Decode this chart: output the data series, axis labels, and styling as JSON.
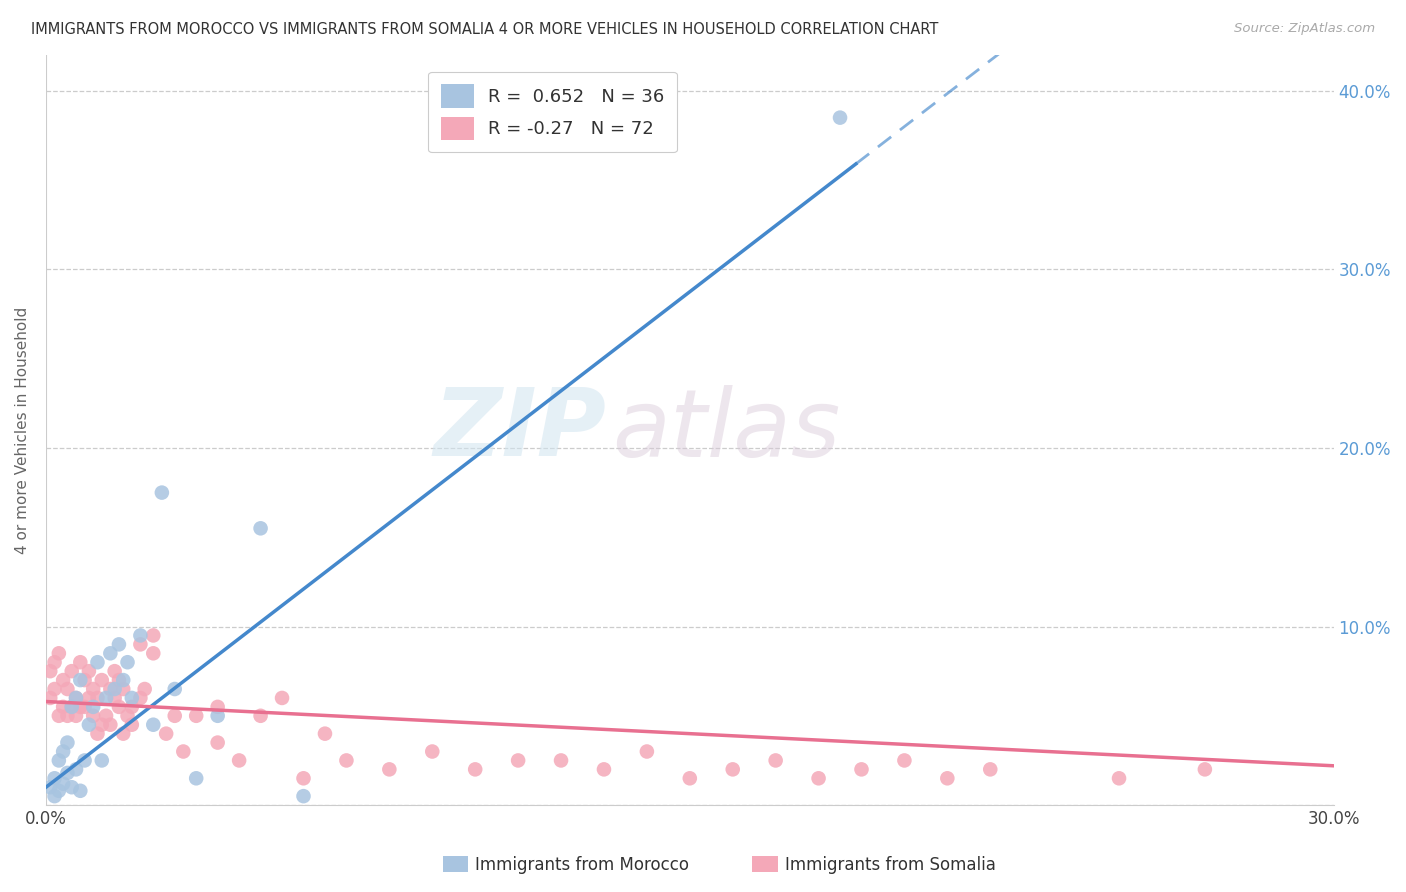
{
  "title": "IMMIGRANTS FROM MOROCCO VS IMMIGRANTS FROM SOMALIA 4 OR MORE VEHICLES IN HOUSEHOLD CORRELATION CHART",
  "source": "Source: ZipAtlas.com",
  "ylabel": "4 or more Vehicles in Household",
  "legend_morocco": "Immigrants from Morocco",
  "legend_somalia": "Immigrants from Somalia",
  "r_morocco": 0.652,
  "n_morocco": 36,
  "r_somalia": -0.27,
  "n_somalia": 72,
  "xlim": [
    0,
    0.3
  ],
  "ylim": [
    0,
    0.42
  ],
  "xticks": [
    0.0,
    0.05,
    0.1,
    0.15,
    0.2,
    0.25,
    0.3
  ],
  "yticks": [
    0.0,
    0.1,
    0.2,
    0.3,
    0.4
  ],
  "morocco_color": "#a8c4e0",
  "somalia_color": "#f4a8b8",
  "morocco_line_color": "#4488cc",
  "somalia_line_color": "#e87090",
  "watermark_zip": "ZIP",
  "watermark_atlas": "atlas",
  "background_color": "#ffffff",
  "morocco_x": [
    0.001,
    0.002,
    0.002,
    0.003,
    0.003,
    0.004,
    0.004,
    0.005,
    0.005,
    0.006,
    0.006,
    0.007,
    0.007,
    0.008,
    0.008,
    0.009,
    0.01,
    0.011,
    0.012,
    0.013,
    0.014,
    0.015,
    0.016,
    0.017,
    0.018,
    0.019,
    0.02,
    0.022,
    0.025,
    0.027,
    0.03,
    0.035,
    0.04,
    0.05,
    0.06,
    0.185
  ],
  "morocco_y": [
    0.01,
    0.005,
    0.015,
    0.008,
    0.025,
    0.012,
    0.03,
    0.018,
    0.035,
    0.01,
    0.055,
    0.02,
    0.06,
    0.008,
    0.07,
    0.025,
    0.045,
    0.055,
    0.08,
    0.025,
    0.06,
    0.085,
    0.065,
    0.09,
    0.07,
    0.08,
    0.06,
    0.095,
    0.045,
    0.175,
    0.065,
    0.015,
    0.05,
    0.155,
    0.005,
    0.385
  ],
  "somalia_x": [
    0.001,
    0.001,
    0.002,
    0.002,
    0.003,
    0.003,
    0.004,
    0.004,
    0.005,
    0.005,
    0.006,
    0.006,
    0.007,
    0.007,
    0.008,
    0.008,
    0.009,
    0.009,
    0.01,
    0.01,
    0.011,
    0.011,
    0.012,
    0.012,
    0.013,
    0.013,
    0.014,
    0.015,
    0.015,
    0.016,
    0.016,
    0.017,
    0.017,
    0.018,
    0.018,
    0.019,
    0.02,
    0.02,
    0.022,
    0.022,
    0.023,
    0.025,
    0.025,
    0.028,
    0.03,
    0.032,
    0.035,
    0.04,
    0.04,
    0.045,
    0.05,
    0.055,
    0.06,
    0.065,
    0.07,
    0.08,
    0.09,
    0.1,
    0.11,
    0.12,
    0.13,
    0.14,
    0.15,
    0.16,
    0.17,
    0.18,
    0.19,
    0.2,
    0.21,
    0.22,
    0.25,
    0.27
  ],
  "somalia_y": [
    0.06,
    0.075,
    0.065,
    0.08,
    0.05,
    0.085,
    0.055,
    0.07,
    0.05,
    0.065,
    0.055,
    0.075,
    0.06,
    0.05,
    0.055,
    0.08,
    0.055,
    0.07,
    0.06,
    0.075,
    0.05,
    0.065,
    0.04,
    0.06,
    0.045,
    0.07,
    0.05,
    0.045,
    0.065,
    0.06,
    0.075,
    0.055,
    0.07,
    0.04,
    0.065,
    0.05,
    0.045,
    0.055,
    0.06,
    0.09,
    0.065,
    0.085,
    0.095,
    0.04,
    0.05,
    0.03,
    0.05,
    0.035,
    0.055,
    0.025,
    0.05,
    0.06,
    0.015,
    0.04,
    0.025,
    0.02,
    0.03,
    0.02,
    0.025,
    0.025,
    0.02,
    0.03,
    0.015,
    0.02,
    0.025,
    0.015,
    0.02,
    0.025,
    0.015,
    0.02,
    0.015,
    0.02
  ],
  "morocco_slope": 1.85,
  "morocco_intercept": 0.01,
  "somalia_slope": -0.12,
  "somalia_intercept": 0.058
}
